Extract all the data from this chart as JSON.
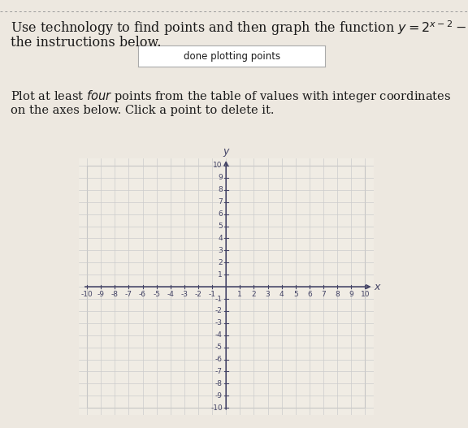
{
  "button_text": "done plotting points",
  "xlabel": "x",
  "ylabel": "y",
  "xlim": [
    -10,
    10
  ],
  "ylim": [
    -10,
    10
  ],
  "xticks": [
    -10,
    -9,
    -8,
    -7,
    -6,
    -5,
    -4,
    -3,
    -2,
    -1,
    1,
    2,
    3,
    4,
    5,
    6,
    7,
    8,
    9,
    10
  ],
  "yticks": [
    -10,
    -9,
    -8,
    -7,
    -6,
    -5,
    -4,
    -3,
    -2,
    -1,
    1,
    2,
    3,
    4,
    5,
    6,
    7,
    8,
    9,
    10
  ],
  "grid_color": "#cccccc",
  "axis_color": "#444466",
  "background_color": "#ede8e0",
  "plot_bg_color": "#f0ece4",
  "text_color": "#1a1a1a",
  "font_size_title": 11.5,
  "font_size_instruction": 10.5,
  "font_size_ticks": 6.5,
  "font_size_axis_label": 9,
  "dot_line_color": "#aaaaaa",
  "border_color": "#bbbbbb"
}
